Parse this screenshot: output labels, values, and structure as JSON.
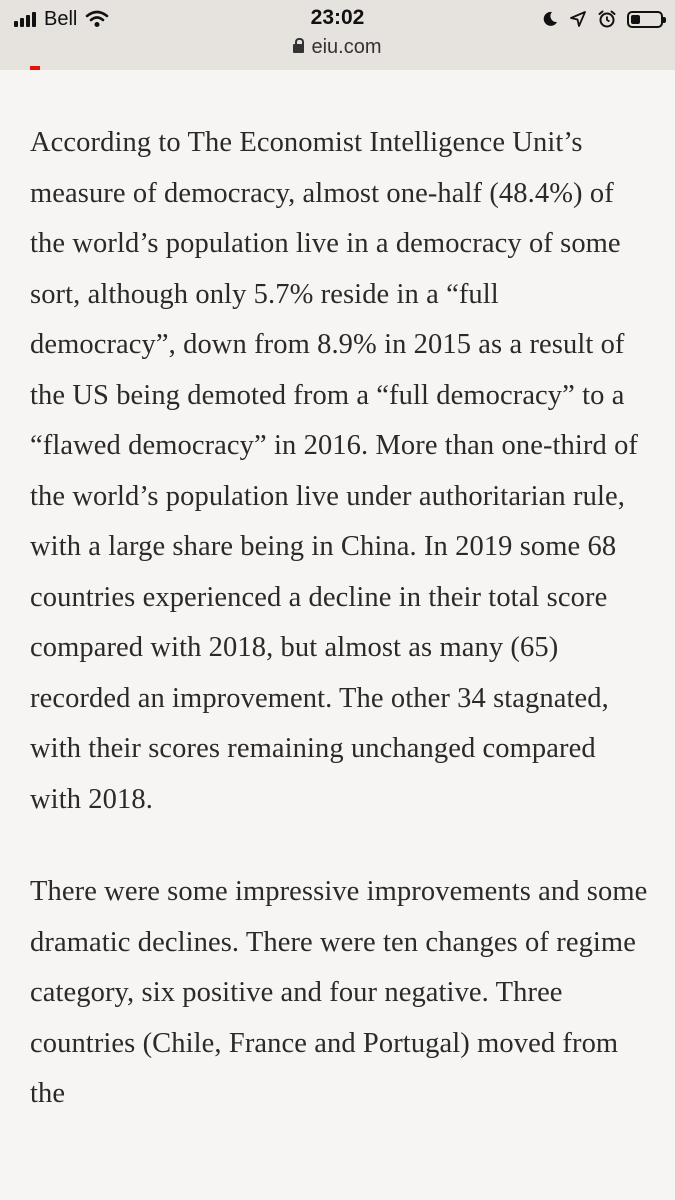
{
  "status_bar": {
    "carrier": "Bell",
    "time": "23:02",
    "url": "eiu.com",
    "icons": [
      "signal-icon",
      "wifi-icon",
      "moon-icon",
      "location-icon",
      "alarm-icon",
      "battery-icon"
    ]
  },
  "article": {
    "paragraphs": [
      "According to The Economist Intelligence Unit’s measure of democracy, almost one-half (48.4%) of the world’s population live in a democracy of some sort, although only 5.7% reside in a “full democracy”, down from 8.9% in 2015 as a result of the US being demoted from a “full democracy” to a “flawed democracy” in 2016. More than one-third of the world’s population live under authoritarian rule, with a large share being in China. In 2019 some 68 countries experienced a decline in their total score compared with 2018, but almost as many (65) recorded an improvement. The other 34 stagnated, with their scores remaining unchanged compared with 2018.",
      "There were some impressive improvements and some dramatic declines. There were ten changes of regime category, six positive and four negative. Three countries (Chile, France and Portugal) moved from the"
    ]
  },
  "colors": {
    "accent": "#e3120b",
    "status_bar_bg": "#e6e3df",
    "page_bg": "#f7f5f3",
    "text": "#2a2a2a"
  }
}
